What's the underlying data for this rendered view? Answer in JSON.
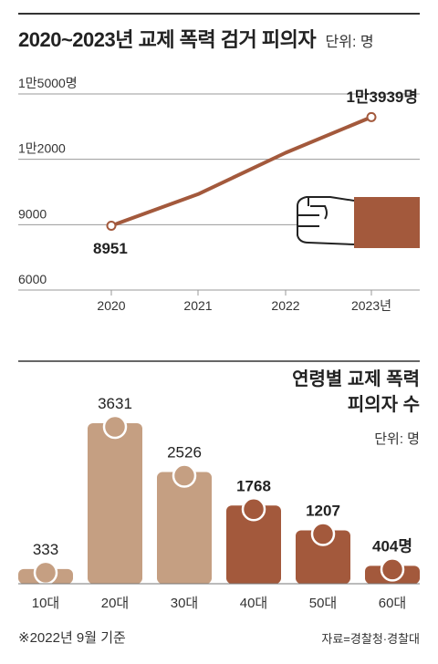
{
  "header": {
    "title": "2020~2023년 교제 폭력 검거 피의자",
    "unit": "단위: 명"
  },
  "chart_data": [
    {
      "type": "line",
      "x": [
        "2020",
        "2021",
        "2022",
        "2023년"
      ],
      "values": [
        8951,
        10400,
        12300,
        13939
      ],
      "ylim": [
        6000,
        15000
      ],
      "y_ticks": [
        "6000",
        "9000",
        "1만2000",
        "1만5000명"
      ],
      "y_tick_values": [
        6000,
        9000,
        12000,
        15000
      ],
      "labels": {
        "first": "8951",
        "last": "1만3939명"
      },
      "color": "#a3593c",
      "grid": true
    },
    {
      "type": "bar",
      "title_lines": [
        "연령별 교제 폭력",
        "피의자 수"
      ],
      "unit": "단위: 명",
      "categories": [
        "10대",
        "20대",
        "30대",
        "40대",
        "50대",
        "60대"
      ],
      "values": [
        333,
        3631,
        2526,
        1768,
        1207,
        404
      ],
      "value_labels": [
        "333",
        "3631",
        "2526",
        "1768",
        "1207",
        "404명"
      ],
      "colors": [
        "#c59f82",
        "#c59f82",
        "#c59f82",
        "#a3593c",
        "#a3593c",
        "#a3593c"
      ],
      "bold_labels": [
        false,
        false,
        false,
        true,
        true,
        true
      ],
      "ylim": [
        0,
        3631
      ]
    }
  ],
  "footnote": "※2022년 9월 기준",
  "source": "자료=경찰청·경찰대"
}
